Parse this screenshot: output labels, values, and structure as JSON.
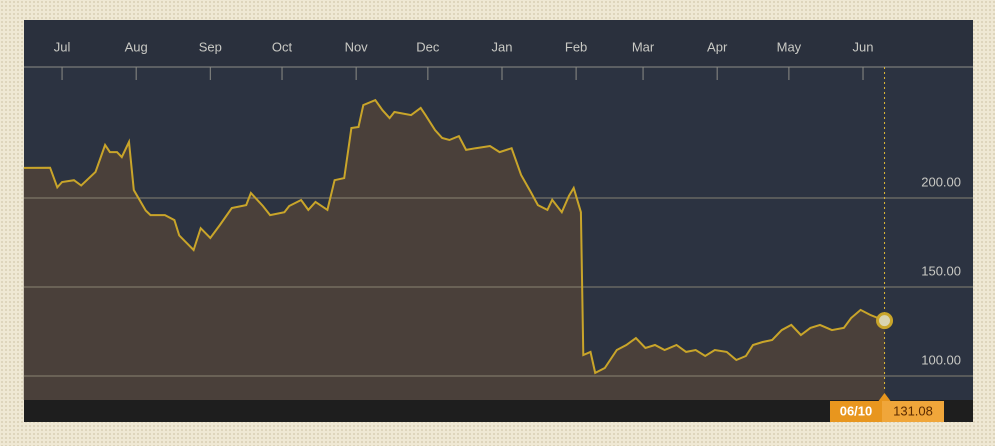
{
  "chart_data": {
    "type": "line",
    "x": [
      0,
      11,
      14,
      16,
      21,
      24,
      30,
      34,
      36,
      39,
      41,
      44,
      46,
      51,
      53,
      59,
      63,
      65,
      71,
      74,
      78,
      82,
      87,
      93,
      95,
      100,
      103,
      109,
      111,
      116,
      119,
      122,
      127,
      130,
      134,
      137,
      140,
      142,
      147,
      150,
      153,
      155,
      162,
      166,
      168,
      172,
      175,
      178,
      182,
      185,
      189,
      195,
      199,
      204,
      208,
      212,
      215,
      219,
      221,
      225,
      228,
      230,
      233,
      234,
      237,
      239,
      243,
      248,
      252,
      256,
      260,
      264,
      268,
      273,
      277,
      281,
      285,
      289,
      294,
      298,
      302,
      305,
      309,
      313,
      317,
      321,
      325,
      329,
      333,
      338,
      343,
      346,
      350,
      354,
      360
    ],
    "values": [
      216.9,
      217,
      206,
      209,
      210,
      207,
      214.6,
      229.8,
      225.8,
      225.8,
      223,
      231.5,
      204.5,
      193,
      190.4,
      190.4,
      187.6,
      179,
      170.8,
      183,
      177.5,
      184.8,
      194.4,
      196,
      202.8,
      195.5,
      190.4,
      192,
      195.5,
      198.9,
      193.3,
      197.8,
      193.3,
      210,
      211.2,
      239.3,
      239.9,
      252.2,
      255,
      249.4,
      244.9,
      248.3,
      246.6,
      250.6,
      246.6,
      238.2,
      233.7,
      232.6,
      234.8,
      227,
      228,
      229.2,
      225.8,
      228,
      212.9,
      203.4,
      196,
      193.3,
      199,
      192,
      201.1,
      205.6,
      192,
      111.8,
      113.5,
      101.7,
      104.5,
      114.6,
      117.4,
      121.3,
      115.7,
      117.4,
      114.6,
      117.4,
      113.5,
      114.6,
      111.2,
      114.6,
      113.5,
      109,
      111.2,
      117.4,
      119.1,
      120.2,
      125.8,
      128.7,
      123,
      127,
      128.7,
      125.8,
      127,
      132.6,
      137.1,
      134.3,
      131.08
    ],
    "color": "#c9a52a",
    "xlim": [
      0,
      397
    ],
    "xticks": [
      {
        "value": 16,
        "label": "Jul"
      },
      {
        "value": 47,
        "label": "Aug"
      },
      {
        "value": 78,
        "label": "Sep"
      },
      {
        "value": 108,
        "label": "Oct"
      },
      {
        "value": 139,
        "label": "Nov"
      },
      {
        "value": 169,
        "label": "Dec"
      },
      {
        "value": 200,
        "label": "Jan"
      },
      {
        "value": 231,
        "label": "Feb"
      },
      {
        "value": 259,
        "label": "Mar"
      },
      {
        "value": 290,
        "label": "Apr"
      },
      {
        "value": 320,
        "label": "May"
      },
      {
        "value": 351,
        "label": "Jun"
      }
    ],
    "ylim": [
      86.5,
      273.6
    ],
    "yticks": [
      {
        "value": 100,
        "label": "100.00"
      },
      {
        "value": 150,
        "label": "150.00"
      },
      {
        "value": 200,
        "label": "200.00"
      }
    ],
    "grid": true,
    "cursor": {
      "date": "06/10",
      "value": 131.08
    }
  }
}
